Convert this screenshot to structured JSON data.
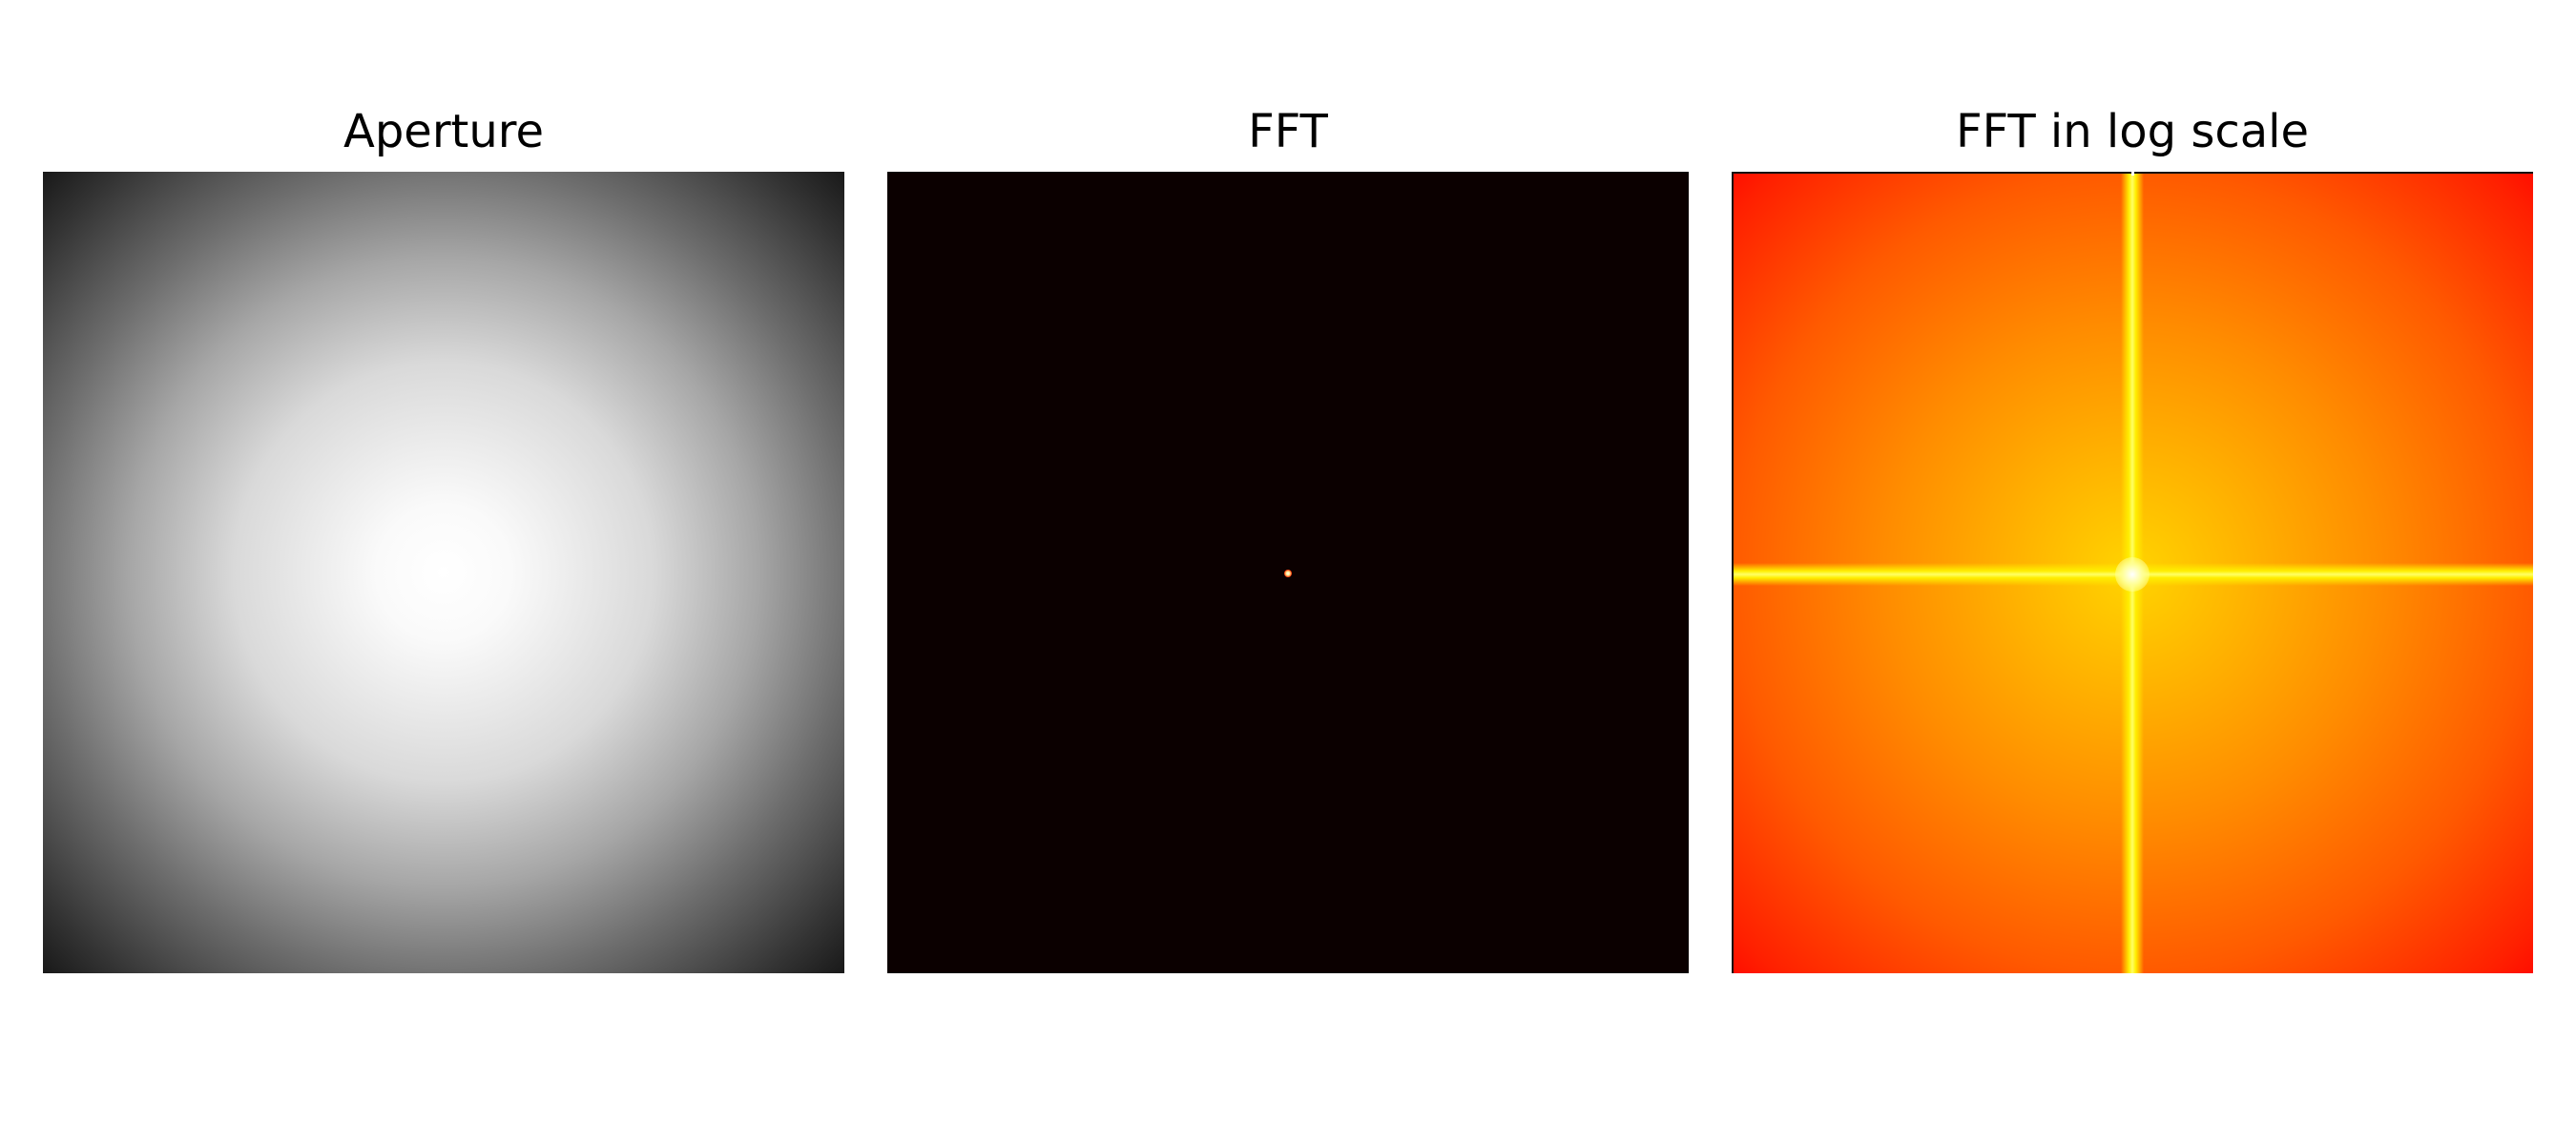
{
  "chart_data": [
    {
      "type": "heatmap",
      "title": "Aperture",
      "colormap": "gray",
      "content": "radial Gaussian aperture, brightest at center",
      "axes_visible": false
    },
    {
      "type": "heatmap",
      "title": "FFT",
      "colormap": "hot",
      "content": "single bright point at center on dark background",
      "axes_visible": false
    },
    {
      "type": "heatmap",
      "title": "FFT in log scale",
      "colormap": "autumn",
      "content": "bright cross through center, falling off toward corners",
      "axes_visible": false
    }
  ]
}
